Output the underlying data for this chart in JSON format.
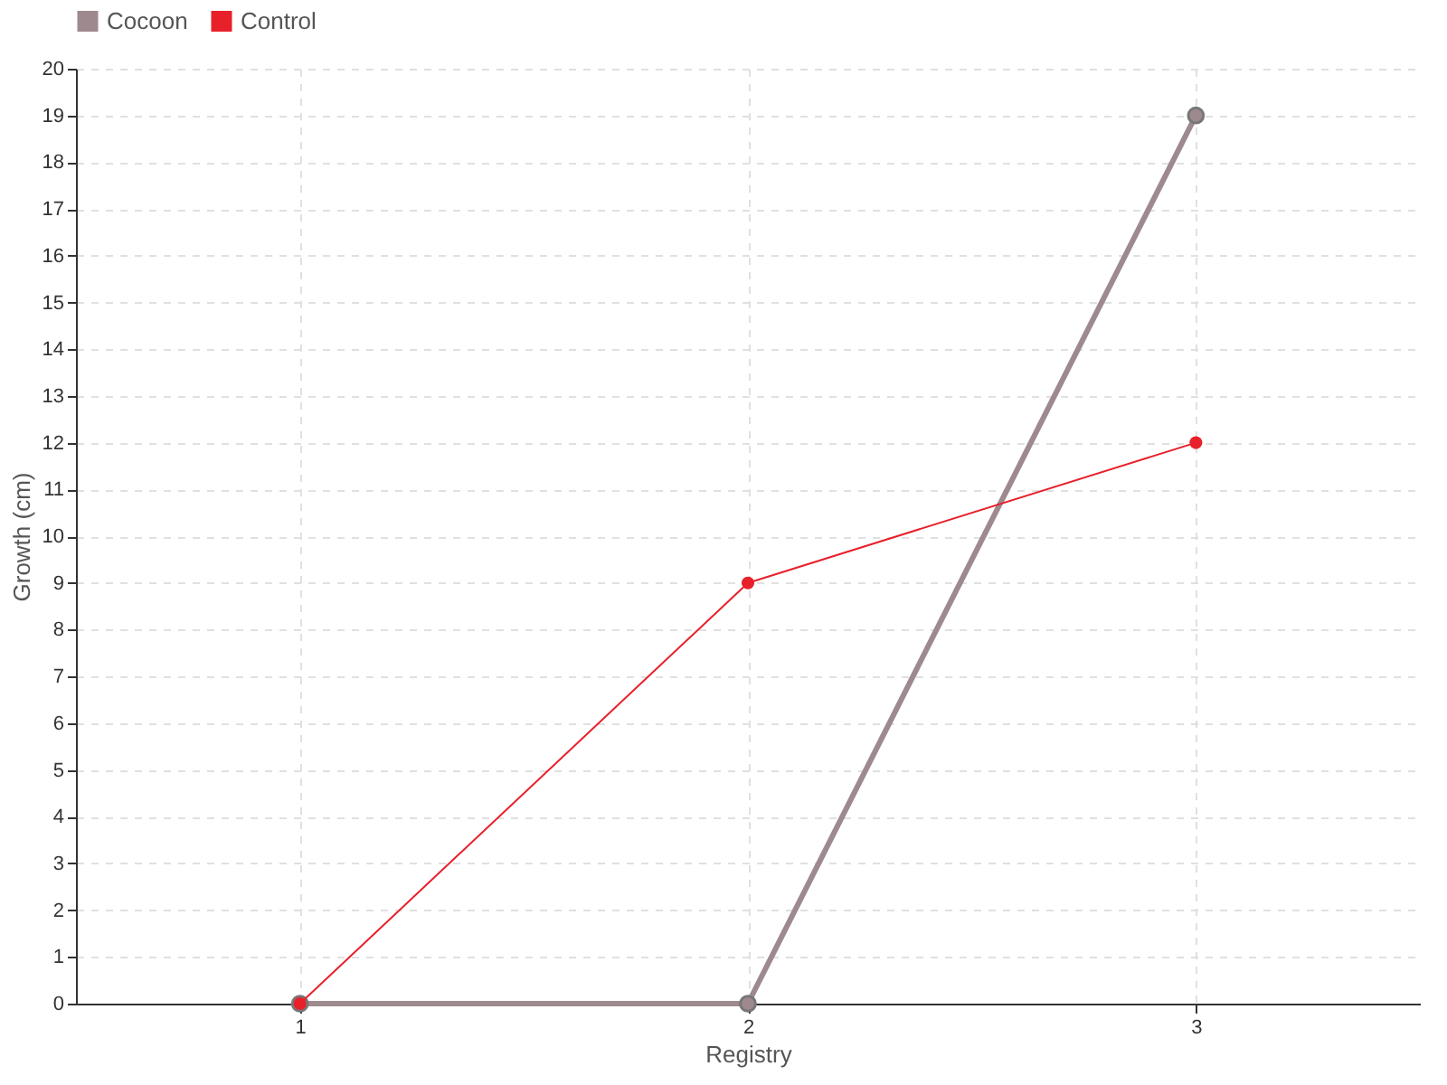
{
  "chart_data": {
    "type": "line",
    "xlabel": "Registry",
    "ylabel": "Growth (cm)",
    "categories": [
      "1",
      "2",
      "3"
    ],
    "series": [
      {
        "name": "Cocoon",
        "color": "#9e8a8e",
        "values": [
          0,
          0,
          19
        ]
      },
      {
        "name": "Control",
        "color": "#e8202a",
        "values": [
          0,
          9,
          12
        ]
      }
    ],
    "ylim": [
      0,
      20
    ],
    "yticks": [
      0,
      1,
      2,
      3,
      4,
      5,
      6,
      7,
      8,
      9,
      10,
      11,
      12,
      13,
      14,
      15,
      16,
      17,
      18,
      19,
      20
    ],
    "grid": true,
    "legend": "top left",
    "marker": "circle",
    "line_style": "solid"
  }
}
